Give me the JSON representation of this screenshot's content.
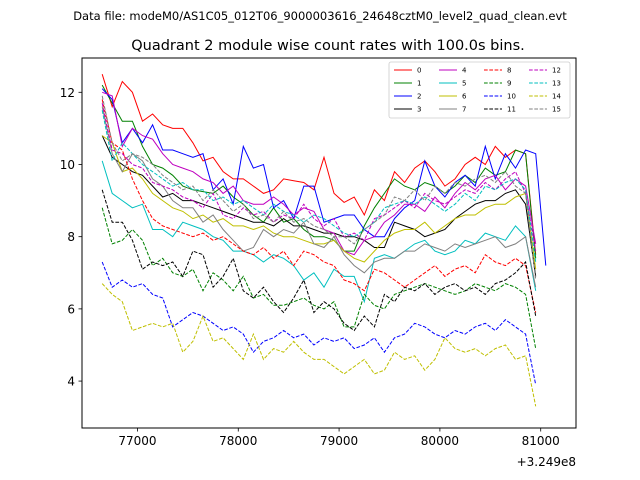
{
  "header": {
    "data_file": "Data file: modeM0/AS1C05_012T06_9000003616_24648cztM0_level2_quad_clean.evt"
  },
  "chart_data": {
    "type": "line",
    "title": "Quadrant 2 module wise count rates with 100.0s bins.",
    "xlabel": "",
    "ylabel": "",
    "offset_label": "+3.249e8",
    "x_offset": 324900000,
    "xlim": [
      76450,
      81350
    ],
    "ylim": [
      2.7,
      12.95
    ],
    "x_ticks": [
      77000,
      78000,
      79000,
      80000,
      81000
    ],
    "x_tick_labels": [
      "77000",
      "78000",
      "79000",
      "80000",
      "81000"
    ],
    "y_ticks": [
      4,
      6,
      8,
      10,
      12
    ],
    "y_tick_labels": [
      "4",
      "6",
      "8",
      "10",
      "12"
    ],
    "grid": false,
    "legend_position": "top-right",
    "x_start": 76650,
    "x_step": 100,
    "series": [
      {
        "name": "0",
        "color": "#ff0000",
        "dash": "solid",
        "values": [
          12.5,
          11.6,
          12.3,
          12.0,
          11.2,
          11.4,
          11.1,
          11.0,
          11.0,
          10.6,
          10.1,
          10.2,
          9.8,
          9.6,
          9.6,
          9.4,
          9.2,
          9.3,
          9.6,
          9.55,
          9.5,
          9.3,
          10.2,
          9.2,
          8.95,
          9.1,
          8.6,
          9.3,
          9.0,
          9.8,
          9.5,
          9.9,
          10.1,
          9.8,
          9.4,
          9.6,
          10.0,
          10.2,
          10.0,
          10.5,
          10.2,
          10.4,
          10.3,
          7.5
        ]
      },
      {
        "name": "1",
        "color": "#008000",
        "dash": "solid",
        "values": [
          12.2,
          11.7,
          11.2,
          11.2,
          10.5,
          10.0,
          9.9,
          9.7,
          9.4,
          9.3,
          9.25,
          9.2,
          9.4,
          9.1,
          8.9,
          8.6,
          8.4,
          8.8,
          8.4,
          8.5,
          8.2,
          8.0,
          8.0,
          7.9,
          7.6,
          7.6,
          8.3,
          8.8,
          9.2,
          9.6,
          9.4,
          9.3,
          9.5,
          9.4,
          9.2,
          9.4,
          9.7,
          9.5,
          9.9,
          9.7,
          9.8,
          10.4,
          10.3,
          7.4
        ]
      },
      {
        "name": "2",
        "color": "#0000ff",
        "dash": "solid",
        "values": [
          12.1,
          11.8,
          10.6,
          11.0,
          10.6,
          11.1,
          10.4,
          10.4,
          10.3,
          10.2,
          10.3,
          9.3,
          9.6,
          8.9,
          10.5,
          9.9,
          10.0,
          8.8,
          9.0,
          8.5,
          9.4,
          9.4,
          8.4,
          8.5,
          8.6,
          8.6,
          8.2,
          8.0,
          8.0,
          8.5,
          8.8,
          9.0,
          10.1,
          9.4,
          9.1,
          9.5,
          9.7,
          9.4,
          10.5,
          9.6,
          10.3,
          9.9,
          10.4,
          10.3,
          7.2
        ]
      },
      {
        "name": "3",
        "color": "#000000",
        "dash": "solid",
        "values": [
          10.8,
          10.2,
          10.0,
          9.8,
          9.7,
          9.4,
          9.1,
          9.2,
          9.0,
          9.0,
          8.9,
          8.8,
          8.7,
          8.6,
          8.5,
          8.4,
          8.4,
          8.3,
          8.5,
          8.3,
          8.3,
          8.2,
          8.1,
          8.1,
          8.0,
          8.0,
          7.9,
          7.7,
          7.7,
          8.4,
          8.3,
          8.2,
          8.0,
          8.1,
          8.2,
          8.5,
          8.7,
          8.9,
          9.0,
          9.0,
          9.2,
          9.3,
          8.9,
          6.9
        ]
      },
      {
        "name": "4",
        "color": "#bf00bf",
        "dash": "solid",
        "values": [
          12.0,
          11.9,
          10.5,
          11.0,
          10.8,
          10.7,
          10.3,
          10.0,
          9.9,
          9.8,
          9.6,
          9.5,
          9.2,
          9.4,
          9.0,
          8.9,
          8.9,
          9.1,
          8.9,
          8.6,
          8.8,
          8.7,
          8.2,
          8.1,
          7.6,
          7.5,
          7.9,
          8.0,
          8.4,
          8.6,
          8.9,
          8.9,
          8.7,
          9.1,
          8.8,
          9.2,
          9.5,
          9.3,
          9.6,
          9.7,
          9.3,
          9.6,
          9.4,
          7.8
        ]
      },
      {
        "name": "5",
        "color": "#00bfbf",
        "dash": "solid",
        "values": [
          10.1,
          9.2,
          9.0,
          8.8,
          8.9,
          8.2,
          8.2,
          8.0,
          8.4,
          8.3,
          8.2,
          8.0,
          7.9,
          7.6,
          7.6,
          7.5,
          7.3,
          7.5,
          7.4,
          7.2,
          6.8,
          7.0,
          6.6,
          7.1,
          6.9,
          6.9,
          6.2,
          7.4,
          7.5,
          7.4,
          7.6,
          7.8,
          7.9,
          7.6,
          7.5,
          7.6,
          7.9,
          7.8,
          8.1,
          8.0,
          7.9,
          8.3,
          8.0,
          6.5
        ]
      },
      {
        "name": "6",
        "color": "#bfbf00",
        "dash": "solid",
        "values": [
          10.8,
          10.6,
          9.8,
          9.9,
          9.6,
          9.2,
          9.0,
          8.8,
          8.7,
          8.5,
          8.6,
          8.4,
          8.5,
          8.3,
          8.3,
          8.2,
          8.3,
          8.1,
          8.0,
          8.0,
          7.9,
          7.8,
          7.8,
          7.9,
          7.6,
          7.4,
          7.3,
          7.6,
          7.9,
          8.1,
          8.2,
          8.2,
          8.4,
          8.1,
          8.3,
          8.5,
          8.6,
          8.6,
          8.8,
          8.9,
          8.9,
          9.1,
          9.2,
          7.1
        ]
      },
      {
        "name": "7",
        "color": "#808080",
        "dash": "solid",
        "values": [
          11.6,
          10.3,
          9.8,
          10.3,
          10.1,
          9.6,
          9.4,
          9.0,
          8.8,
          8.8,
          8.4,
          8.6,
          8.2,
          7.9,
          7.6,
          7.7,
          8.2,
          8.0,
          8.2,
          8.1,
          8.4,
          7.8,
          7.7,
          8.0,
          7.5,
          7.2,
          7.0,
          7.3,
          7.4,
          7.4,
          7.6,
          7.6,
          7.8,
          7.7,
          7.6,
          7.8,
          7.7,
          7.8,
          7.9,
          8.0,
          7.7,
          7.8,
          8.0,
          6.6
        ]
      },
      {
        "name": "8",
        "color": "#ff0000",
        "dash": "dashed",
        "values": [
          11.8,
          10.6,
          10.4,
          9.6,
          9.0,
          8.5,
          8.3,
          8.2,
          8.1,
          8.0,
          8.1,
          7.9,
          8.0,
          7.8,
          7.6,
          7.5,
          7.7,
          7.4,
          7.6,
          7.2,
          7.6,
          7.5,
          7.3,
          7.2,
          6.8,
          6.7,
          6.5,
          7.1,
          7.0,
          6.8,
          6.6,
          6.8,
          7.0,
          7.2,
          6.9,
          7.1,
          7.2,
          7.0,
          7.5,
          7.3,
          7.2,
          7.4,
          7.2,
          5.9
        ]
      },
      {
        "name": "9",
        "color": "#008000",
        "dash": "dashed",
        "values": [
          8.8,
          7.8,
          7.9,
          8.2,
          7.9,
          7.2,
          7.4,
          7.0,
          6.9,
          7.1,
          6.5,
          7.0,
          6.8,
          6.5,
          6.9,
          6.3,
          6.4,
          6.1,
          6.1,
          6.2,
          6.3,
          6.1,
          6.0,
          6.2,
          5.5,
          5.5,
          6.4,
          6.1,
          6.0,
          6.4,
          6.5,
          6.6,
          6.7,
          6.6,
          6.5,
          6.4,
          6.5,
          6.7,
          6.6,
          6.5,
          6.7,
          6.6,
          6.4,
          4.9
        ]
      },
      {
        "name": "10",
        "color": "#0000ff",
        "dash": "dashed",
        "values": [
          7.3,
          6.6,
          6.8,
          6.6,
          6.7,
          6.4,
          6.3,
          5.5,
          5.7,
          5.9,
          5.8,
          5.6,
          5.4,
          5.5,
          5.3,
          4.8,
          5.1,
          5.2,
          5.4,
          5.2,
          5.3,
          5.0,
          5.2,
          5.1,
          5.2,
          4.9,
          5.0,
          5.2,
          4.8,
          5.2,
          5.3,
          5.6,
          5.5,
          5.3,
          5.2,
          5.4,
          5.3,
          5.5,
          5.6,
          5.4,
          5.7,
          5.5,
          5.3,
          3.9
        ]
      },
      {
        "name": "11",
        "color": "#000000",
        "dash": "dashed",
        "values": [
          9.3,
          8.4,
          8.4,
          7.9,
          7.1,
          7.3,
          7.2,
          7.3,
          6.9,
          7.6,
          7.5,
          6.6,
          6.9,
          7.4,
          6.5,
          6.3,
          6.6,
          6.2,
          5.9,
          6.3,
          6.8,
          5.9,
          6.2,
          6.0,
          5.6,
          5.4,
          5.8,
          5.5,
          6.4,
          6.2,
          6.6,
          6.5,
          6.7,
          6.4,
          6.6,
          6.7,
          6.5,
          6.6,
          6.4,
          6.7,
          6.8,
          7.0,
          7.3,
          5.8
        ]
      },
      {
        "name": "12",
        "color": "#bf00bf",
        "dash": "dashed",
        "values": [
          11.7,
          10.4,
          10.3,
          10.0,
          9.9,
          9.5,
          9.4,
          9.3,
          9.1,
          9.0,
          8.8,
          9.2,
          8.6,
          8.5,
          8.8,
          8.6,
          8.7,
          8.4,
          8.6,
          8.5,
          8.9,
          8.5,
          8.3,
          8.5,
          8.0,
          8.1,
          7.9,
          8.5,
          8.6,
          8.8,
          9.0,
          8.8,
          9.2,
          9.0,
          8.9,
          9.1,
          9.3,
          9.2,
          9.5,
          9.3,
          9.6,
          9.8,
          9.2,
          7.6
        ]
      },
      {
        "name": "13",
        "color": "#00bfbf",
        "dash": "dashed",
        "values": [
          11.5,
          10.1,
          10.6,
          10.3,
          10.0,
          9.8,
          9.6,
          9.4,
          9.5,
          9.3,
          9.3,
          9.0,
          9.1,
          8.9,
          9.0,
          8.8,
          8.6,
          8.9,
          8.7,
          8.6,
          8.4,
          8.6,
          8.5,
          8.3,
          8.1,
          8.0,
          8.2,
          8.4,
          8.8,
          8.9,
          9.0,
          8.9,
          9.1,
          8.9,
          8.7,
          8.9,
          9.2,
          9.0,
          9.4,
          9.3,
          9.5,
          9.6,
          9.3,
          7.3
        ]
      },
      {
        "name": "14",
        "color": "#bfbf00",
        "dash": "dashed",
        "values": [
          6.7,
          6.4,
          6.2,
          5.4,
          5.5,
          5.6,
          5.5,
          5.6,
          4.8,
          5.1,
          5.8,
          5.1,
          5.2,
          4.9,
          4.6,
          5.3,
          4.6,
          4.9,
          4.8,
          5.1,
          4.8,
          4.6,
          4.6,
          4.4,
          4.2,
          4.4,
          4.6,
          4.2,
          4.3,
          4.8,
          4.6,
          4.7,
          4.3,
          4.6,
          5.2,
          4.9,
          4.8,
          4.9,
          4.7,
          4.9,
          5.0,
          4.6,
          4.7,
          3.3
        ]
      },
      {
        "name": "15",
        "color": "#808080",
        "dash": "dashed",
        "values": [
          11.9,
          10.6,
          10.1,
          10.3,
          10.2,
          10.0,
          9.7,
          9.5,
          9.3,
          9.4,
          9.0,
          9.3,
          9.0,
          8.7,
          8.9,
          8.5,
          8.6,
          8.4,
          8.7,
          8.4,
          8.5,
          8.3,
          8.2,
          8.0,
          8.0,
          7.8,
          8.2,
          8.4,
          8.6,
          9.1,
          9.0,
          9.3,
          9.0,
          9.4,
          9.2,
          9.5,
          9.4,
          9.6,
          9.7,
          9.5,
          9.8,
          9.4,
          9.2,
          6.8
        ]
      }
    ]
  }
}
